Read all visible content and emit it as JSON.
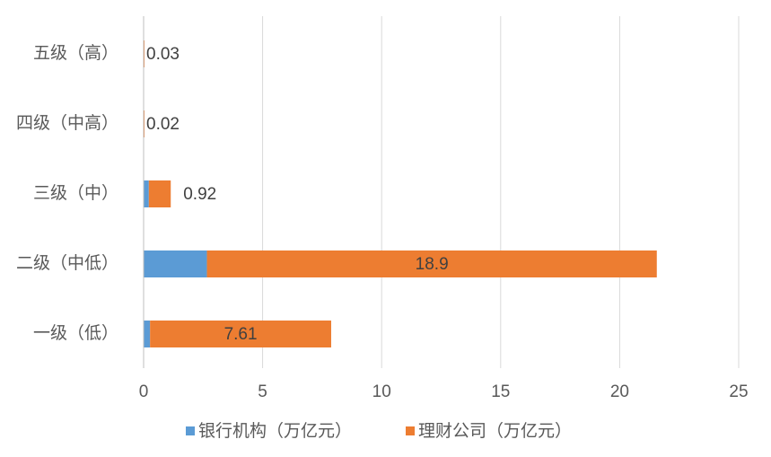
{
  "chart_data": {
    "type": "stacked-hbar",
    "categories": [
      "五级（高）",
      "四级（中高）",
      "三级（中）",
      "二级（中低）",
      "一级（低）"
    ],
    "series": [
      {
        "name": "银行机构（万亿元）",
        "color": "#5b9bd5",
        "values": [
          0,
          0,
          0.22,
          2.66,
          0.27
        ]
      },
      {
        "name": "理财公司（万亿元）",
        "color": "#ed7d31",
        "values": [
          0.03,
          0.02,
          0.92,
          18.9,
          7.61
        ],
        "labels": true
      }
    ],
    "xlim": [
      0,
      25
    ],
    "xticks": [
      0,
      5,
      10,
      15,
      20,
      25
    ],
    "grid": true
  }
}
